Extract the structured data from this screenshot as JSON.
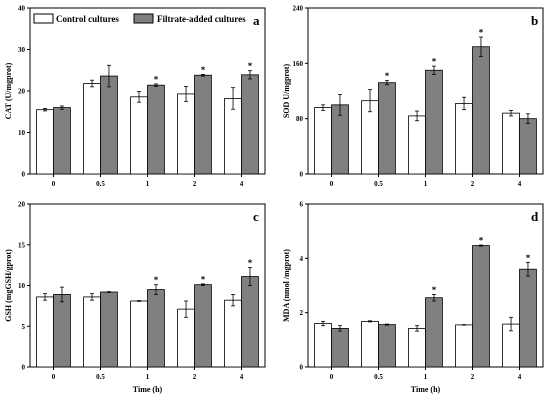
{
  "legend": {
    "control": "Control cultures",
    "filtrate": "Filtrate-added cultures"
  },
  "colors": {
    "control": "#ffffff",
    "filtrate": "#808080",
    "stroke": "#000000"
  },
  "chart_data": [
    {
      "type": "bar",
      "panel_label": "a",
      "ylabel": "CAT (U/mgprot)",
      "xlabel": "",
      "categories": [
        "0",
        "0.5",
        "1",
        "2",
        "4"
      ],
      "ylim": [
        0,
        40
      ],
      "yticks": [
        0,
        10,
        20,
        30,
        40
      ],
      "series": [
        {
          "name": "Control cultures",
          "values": [
            15.5,
            21.8,
            18.6,
            19.3,
            18.2
          ],
          "errors": [
            0.3,
            0.8,
            1.3,
            1.8,
            2.6
          ]
        },
        {
          "name": "Filtrate-added cultures",
          "values": [
            16.0,
            23.6,
            21.4,
            23.8,
            23.9
          ],
          "errors": [
            0.4,
            2.6,
            0.3,
            0.2,
            1.0
          ]
        }
      ],
      "significant": [
        false,
        false,
        true,
        true,
        true
      ]
    },
    {
      "type": "bar",
      "panel_label": "b",
      "ylabel": "SOD U/mgprot)",
      "xlabel": "",
      "categories": [
        "0",
        "0.5",
        "1",
        "2",
        "4"
      ],
      "ylim": [
        0,
        240
      ],
      "yticks": [
        0,
        80,
        160,
        240
      ],
      "series": [
        {
          "name": "Control cultures",
          "values": [
            96,
            106,
            84,
            102,
            88
          ],
          "errors": [
            4,
            16,
            7,
            9,
            4
          ]
        },
        {
          "name": "Filtrate-added cultures",
          "values": [
            100,
            132,
            150,
            184,
            80
          ],
          "errors": [
            15,
            3,
            6,
            14,
            7
          ]
        }
      ],
      "significant": [
        false,
        true,
        true,
        true,
        false
      ]
    },
    {
      "type": "bar",
      "panel_label": "c",
      "ylabel": "GSH (mgGSH/gprot)",
      "xlabel": "",
      "categories": [
        "0",
        "0.5",
        "1",
        "2",
        "4"
      ],
      "ylim": [
        0,
        20
      ],
      "yticks": [
        0,
        5,
        10,
        15,
        20
      ],
      "series": [
        {
          "name": "Control cultures",
          "values": [
            8.6,
            8.6,
            8.1,
            7.1,
            8.2
          ],
          "errors": [
            0.4,
            0.4,
            0.05,
            1.0,
            0.7
          ]
        },
        {
          "name": "Filtrate-added cultures",
          "values": [
            8.9,
            9.2,
            9.5,
            10.1,
            11.1
          ],
          "errors": [
            0.9,
            0.05,
            0.6,
            0.1,
            1.1
          ]
        }
      ],
      "significant": [
        false,
        false,
        true,
        true,
        true
      ]
    },
    {
      "type": "bar",
      "panel_label": "d",
      "ylabel": "MDA (nmol /mgprot)",
      "xlabel": "Time (h)",
      "categories": [
        "0",
        "0.5",
        "1",
        "2",
        "4"
      ],
      "ylim": [
        0,
        6
      ],
      "yticks": [
        0,
        2,
        4,
        6
      ],
      "series": [
        {
          "name": "Control cultures",
          "values": [
            1.6,
            1.68,
            1.42,
            1.55,
            1.58
          ],
          "errors": [
            0.08,
            0.02,
            0.1,
            0.01,
            0.25
          ]
        },
        {
          "name": "Filtrate-added cultures",
          "values": [
            1.42,
            1.56,
            2.55,
            4.47,
            3.6
          ],
          "errors": [
            0.1,
            0.02,
            0.12,
            0.02,
            0.25
          ]
        }
      ],
      "significant": [
        false,
        false,
        true,
        true,
        true
      ]
    }
  ],
  "panel_c_xlabel": "Time (h)"
}
